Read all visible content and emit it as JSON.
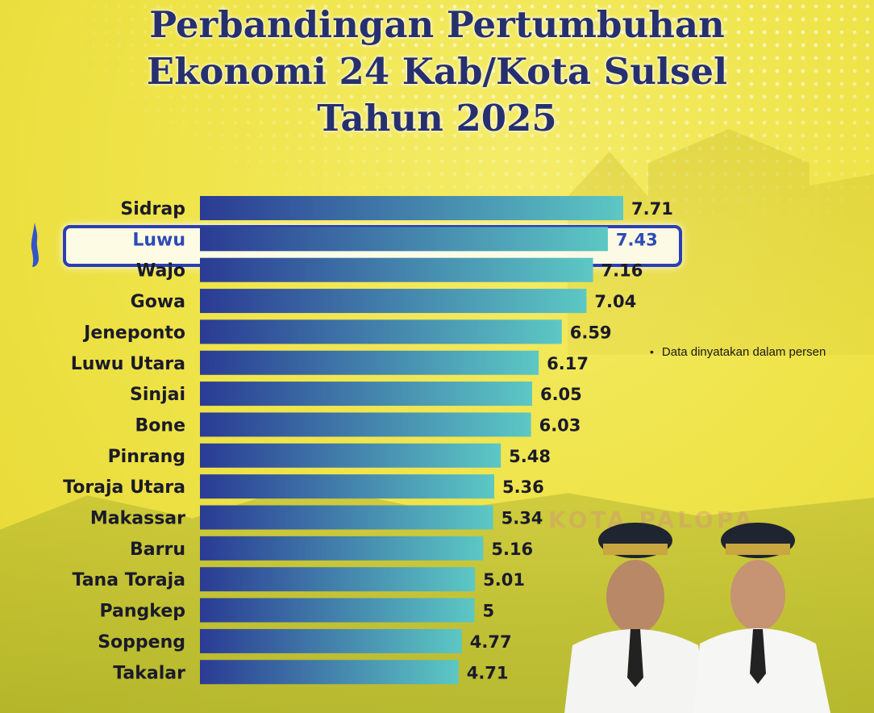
{
  "title": {
    "line1": "Perbandingan Pertumbuhan",
    "line2": "Ekonomi 24 Kab/Kota Sulsel",
    "line3": "Tahun 2025"
  },
  "note": "Data dinyatakan dalam persen",
  "background_text": "KOTA PALOPA",
  "colors": {
    "background": "#efe44a",
    "title": "#26306e",
    "bar_start": "#2a3b93",
    "bar_end": "#5cc8c4",
    "highlight": "#2a3fb4"
  },
  "chart_data": {
    "type": "bar",
    "orientation": "horizontal",
    "categories": [
      "Sidrap",
      "Luwu",
      "Wajo",
      "Gowa",
      "Jeneponto",
      "Luwu Utara",
      "Sinjai",
      "Bone",
      "Pinrang",
      "Toraja Utara",
      "Makassar",
      "Barru",
      "Tana Toraja",
      "Pangkep",
      "Soppeng",
      "Takalar"
    ],
    "values": [
      7.71,
      7.43,
      7.16,
      7.04,
      6.59,
      6.17,
      6.05,
      6.03,
      5.48,
      5.36,
      5.34,
      5.16,
      5.01,
      5,
      4.77,
      4.71
    ],
    "value_labels": [
      "7.71",
      "7.43",
      "7.16",
      "7.04",
      "6.59",
      "6.17",
      "6.05",
      "6.03",
      "5.48",
      "5.36",
      "5.34",
      "5.16",
      "5.01",
      "5",
      "4.77",
      "4.71"
    ],
    "highlighted": "Luwu",
    "xlim": [
      0,
      7.71
    ],
    "grid": false,
    "legend": "none"
  }
}
